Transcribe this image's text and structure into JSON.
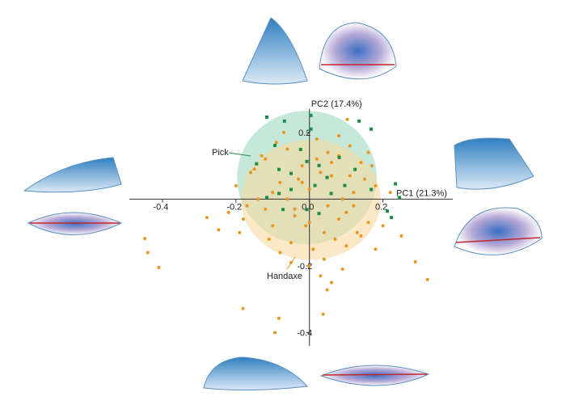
{
  "chart_data": {
    "type": "scatter",
    "x_label": "PC1 (21.3%)",
    "y_label": "PC2 (17.4%)",
    "xlim": [
      -0.49,
      0.39
    ],
    "ylim": [
      -0.44,
      0.27
    ],
    "xticks": [
      -0.4,
      -0.2,
      {
        "value": 0,
        "label": "0.0"
      },
      0.2
    ],
    "yticks": [
      -0.4,
      -0.2,
      0.2
    ],
    "series": [
      {
        "name": "Pick",
        "color": "#1e8c45",
        "marker": "square",
        "ellipse": {
          "cx": -0.007,
          "cy": 0.065,
          "rx": 0.19,
          "ry": 0.2,
          "color": "#9fd8c0"
        },
        "x": [
          -0.116,
          0.004,
          -0.068,
          0.004,
          0.135,
          0.168,
          -0.094,
          -0.144,
          -0.083,
          -0.05,
          -0.024,
          -0.007,
          0.026,
          0.048,
          0.081,
          0.096,
          0.168,
          0.234,
          0.245,
          0.212,
          0.223,
          -0.072,
          -0.116,
          -0.007,
          0.026,
          -0.05,
          0.059,
          0.124,
          0.015,
          -0.083
        ],
        "values": [
          0.246,
          0.251,
          0.234,
          0.21,
          0.234,
          0.21,
          0.161,
          0.106,
          0.089,
          0.077,
          0.149,
          0.113,
          0.101,
          0.065,
          0.125,
          0.041,
          0.029,
          0.046,
          0.005,
          -0.036,
          -0.055,
          -0.031,
          0.005,
          -0.031,
          -0.043,
          0.029,
          0.017,
          0.089,
          0.041,
          0.017
        ]
      },
      {
        "name": "Handaxe",
        "color": "#e8961e",
        "marker": "circle",
        "ellipse": {
          "cx": 0.004,
          "cy": -0.002,
          "rx": 0.19,
          "ry": 0.18,
          "color": "#f7d9a0"
        },
        "x": [
          -0.448,
          -0.41,
          -0.44,
          0.321,
          0.288,
          -0.181,
          -0.094,
          -0.083,
          0.048,
          0.06,
          0.037,
          -0.247,
          -0.279,
          0.103,
          -0.2,
          -0.17,
          -0.15,
          -0.12,
          -0.1,
          -0.08,
          -0.06,
          -0.04,
          -0.02,
          0.0,
          0.02,
          0.04,
          0.06,
          0.08,
          0.1,
          0.12,
          0.14,
          0.16,
          0.18,
          -0.18,
          -0.14,
          -0.11,
          -0.09,
          -0.05,
          -0.03,
          0.01,
          0.03,
          0.05,
          0.07,
          0.09,
          0.11,
          0.13,
          0.15,
          -0.13,
          -0.07,
          -0.01,
          0.05,
          0.11,
          0.17,
          -0.16,
          -0.1,
          -0.04,
          0.02,
          0.08,
          0.14,
          -0.12,
          -0.06,
          0.0,
          0.06,
          0.12,
          -0.08,
          0.04,
          0.1,
          -0.02,
          0.08,
          0.2,
          0.22,
          -0.22,
          -0.19,
          0.0,
          0.03,
          0.16,
          0.25,
          0.18,
          0.09,
          -0.05
        ],
        "values": [
          -0.118,
          -0.205,
          -0.16,
          -0.241,
          -0.188,
          -0.328,
          -0.4,
          -0.357,
          -0.272,
          -0.25,
          -0.345,
          -0.092,
          -0.055,
          0.239,
          0.04,
          -0.02,
          0.09,
          0.12,
          -0.08,
          0.05,
          0.15,
          -0.05,
          0.1,
          0.03,
          0.18,
          -0.1,
          0.07,
          0.13,
          -0.04,
          0.02,
          0.11,
          -0.07,
          0.04,
          -0.06,
          0.0,
          -0.12,
          0.17,
          -0.13,
          0.06,
          -0.15,
          0.08,
          0.14,
          -0.12,
          0.0,
          0.16,
          -0.1,
          0.06,
          0.13,
          0.2,
          -0.08,
          -0.02,
          0.07,
          0.1,
          0.08,
          0.02,
          -0.03,
          0.12,
          -0.06,
          -0.11,
          -0.03,
          0.0,
          -0.07,
          0.11,
          -0.02,
          -0.16,
          -0.18,
          -0.14,
          0.05,
          0.19,
          -0.08,
          0.02,
          -0.04,
          -0.1,
          -0.2,
          -0.23,
          0.14,
          -0.11,
          -0.15,
          -0.21,
          -0.19
        ]
      }
    ]
  }
}
